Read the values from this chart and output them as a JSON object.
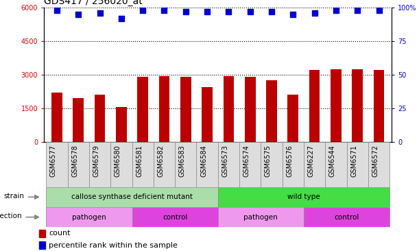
{
  "title": "GDS417 / 256020_at",
  "samples": [
    "GSM6577",
    "GSM6578",
    "GSM6579",
    "GSM6580",
    "GSM6581",
    "GSM6582",
    "GSM6583",
    "GSM6584",
    "GSM6573",
    "GSM6574",
    "GSM6575",
    "GSM6576",
    "GSM6227",
    "GSM6544",
    "GSM6571",
    "GSM6572"
  ],
  "counts": [
    2200,
    1950,
    2100,
    1550,
    2900,
    2950,
    2900,
    2450,
    2950,
    2900,
    2750,
    2100,
    3200,
    3250,
    3250,
    3200
  ],
  "percentiles": [
    98,
    95,
    96,
    92,
    98,
    98,
    97,
    97,
    97,
    97,
    97,
    95,
    96,
    98,
    98,
    98
  ],
  "ylim_left": [
    0,
    6000
  ],
  "ylim_right": [
    0,
    100
  ],
  "yticks_left": [
    0,
    1500,
    3000,
    4500,
    6000
  ],
  "yticks_right": [
    0,
    25,
    50,
    75,
    100
  ],
  "bar_color": "#bb0000",
  "dot_color": "#0000cc",
  "bg_color": "#ffffff",
  "strain_groups": [
    {
      "label": "callose synthase deficient mutant",
      "start": 0,
      "end": 8,
      "color": "#aaddaa"
    },
    {
      "label": "wild type",
      "start": 8,
      "end": 16,
      "color": "#44dd44"
    }
  ],
  "infection_groups": [
    {
      "label": "pathogen",
      "start": 0,
      "end": 4,
      "color": "#ee99ee"
    },
    {
      "label": "control",
      "start": 4,
      "end": 8,
      "color": "#dd44dd"
    },
    {
      "label": "pathogen",
      "start": 8,
      "end": 12,
      "color": "#ee99ee"
    },
    {
      "label": "control",
      "start": 12,
      "end": 16,
      "color": "#dd44dd"
    }
  ],
  "strain_label": "strain",
  "infection_label": "infection",
  "legend_count_label": "count",
  "legend_percentile_label": "percentile rank within the sample",
  "left_axis_color": "#cc0000",
  "right_axis_color": "#0000cc",
  "grid_color": "#000000",
  "xtick_bg": "#dddddd",
  "bar_width": 0.5,
  "dot_size": 30,
  "dot_marker": "s",
  "title_fontsize": 10,
  "tick_fontsize": 7,
  "label_fontsize": 7.5,
  "annot_fontsize": 7.5,
  "legend_fontsize": 8
}
